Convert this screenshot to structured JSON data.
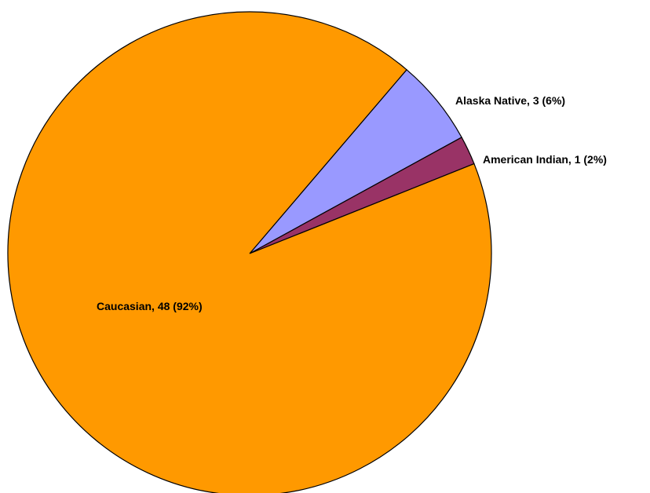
{
  "chart_data": {
    "type": "pie",
    "slices": [
      {
        "category": "Alaska Native",
        "value": 3,
        "percent": "6%",
        "label": "Alaska Native, 3 (6%)",
        "color": "#9999FF"
      },
      {
        "category": "American Indian",
        "value": 1,
        "percent": "2%",
        "label": "American Indian, 1 (2%)",
        "color": "#993366"
      },
      {
        "category": "Caucasian",
        "value": 48,
        "percent": "92%",
        "label": "Caucasian, 48 (92%)",
        "color": "#FF9900"
      }
    ],
    "start_angle_deg": 40.5,
    "direction": "clockwise",
    "legend": "none",
    "title": ""
  }
}
